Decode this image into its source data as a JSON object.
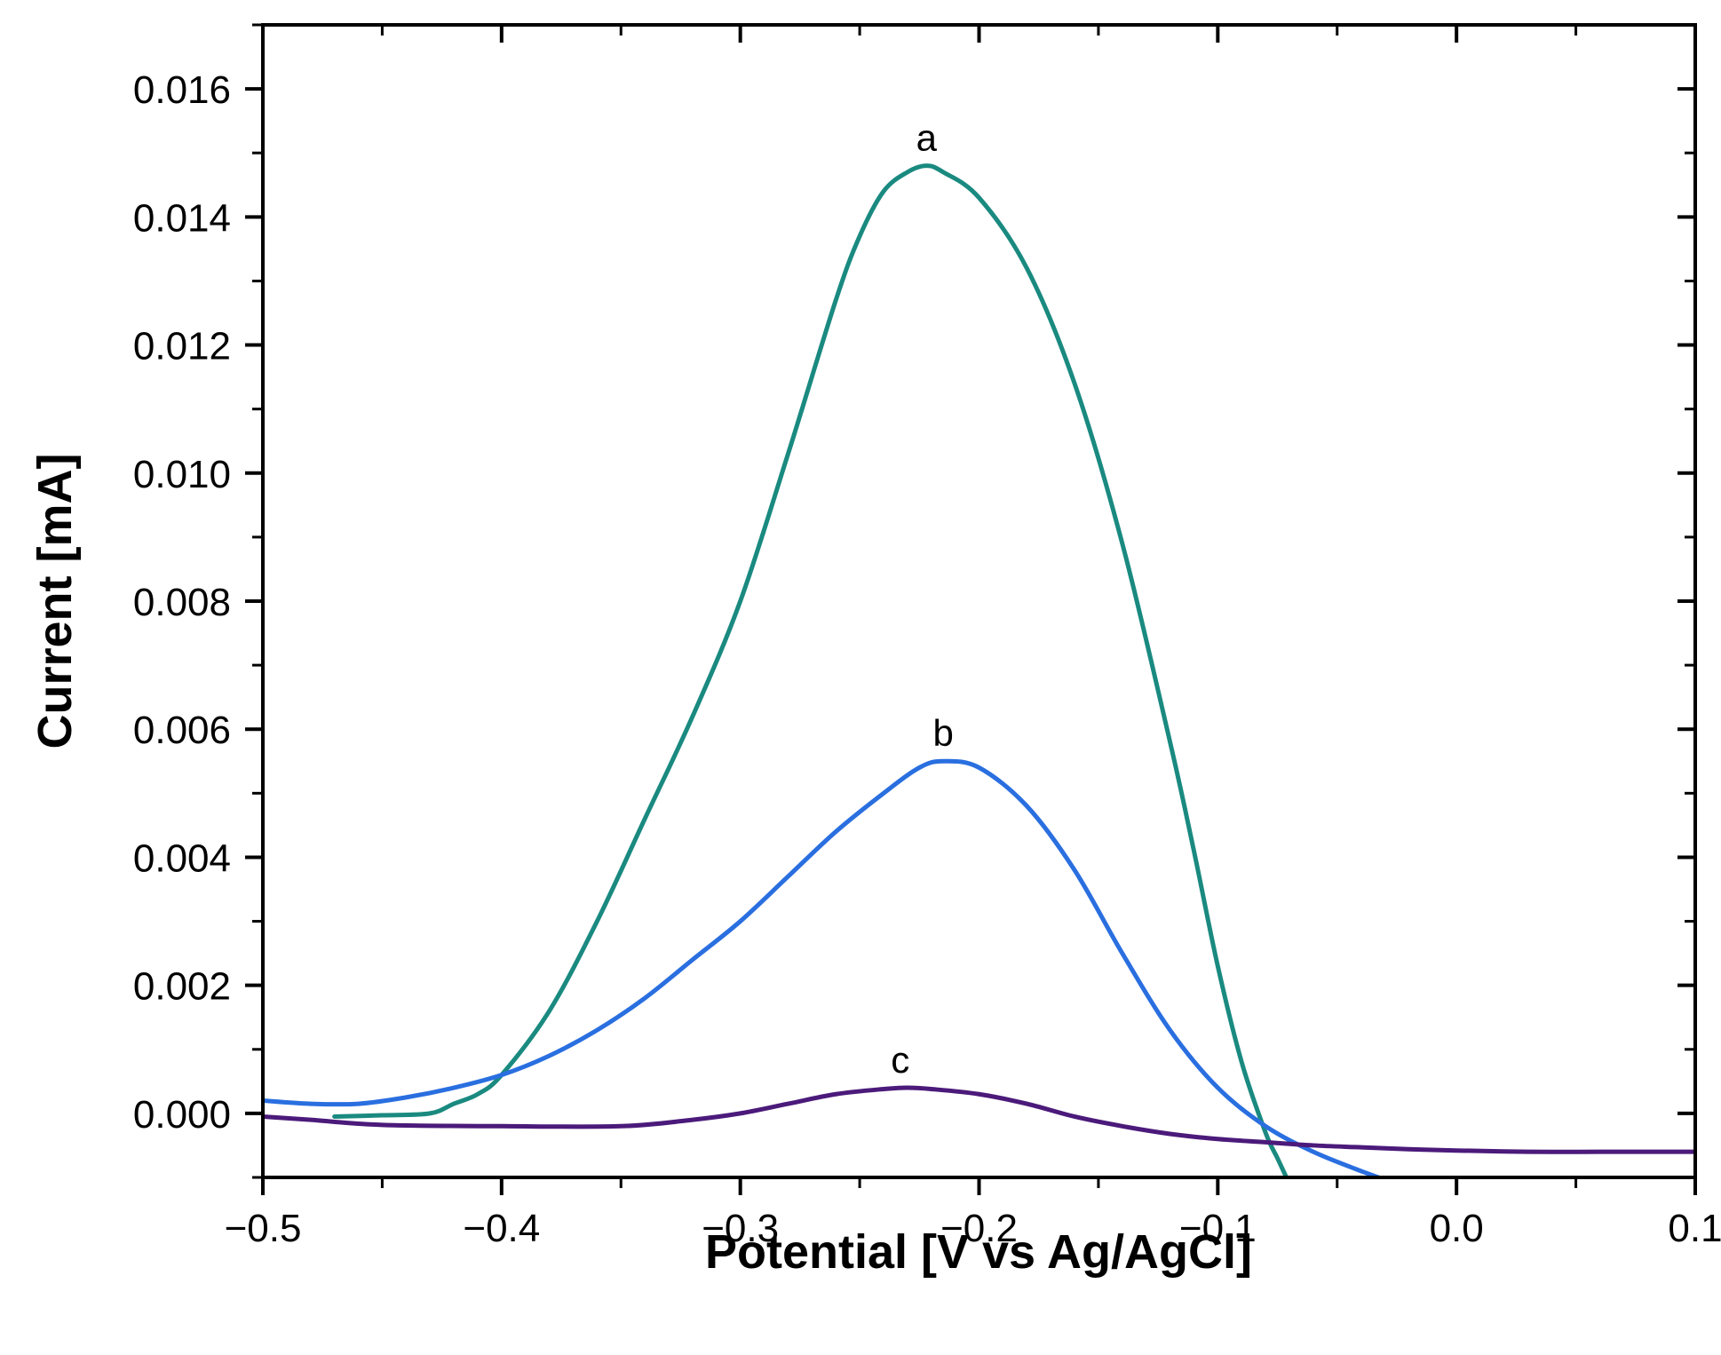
{
  "chart_data": {
    "type": "line",
    "title": "",
    "xlabel": "Potential [V vs Ag/AgCl]",
    "ylabel": "Current [mA]",
    "xlim": [
      -0.5,
      0.1
    ],
    "ylim": [
      -0.001,
      0.017
    ],
    "grid": false,
    "x_ticks": [
      -0.5,
      -0.4,
      -0.3,
      -0.2,
      -0.1,
      0.0,
      0.1
    ],
    "x_tick_labels": [
      "−0.5",
      "−0.4",
      "−0.3",
      "−0.2",
      "−0.1",
      "0.0",
      "0.1"
    ],
    "y_ticks": [
      0.0,
      0.002,
      0.004,
      0.006,
      0.008,
      0.01,
      0.012,
      0.014,
      0.016
    ],
    "y_tick_labels": [
      "0.000",
      "0.002",
      "0.004",
      "0.006",
      "0.008",
      "0.010",
      "0.012",
      "0.014",
      "0.016"
    ],
    "series": [
      {
        "name": "a",
        "label": "a",
        "color": "#1a8a80",
        "x": [
          -0.47,
          -0.45,
          -0.43,
          -0.42,
          -0.41,
          -0.4,
          -0.38,
          -0.36,
          -0.34,
          -0.32,
          -0.3,
          -0.28,
          -0.26,
          -0.25,
          -0.24,
          -0.23,
          -0.222,
          -0.215,
          -0.2,
          -0.18,
          -0.16,
          -0.14,
          -0.12,
          -0.11,
          -0.1,
          -0.09,
          -0.08,
          -0.075,
          -0.07
        ],
        "y": [
          -5e-05,
          -3e-05,
          0.0,
          0.00015,
          0.0003,
          0.0006,
          0.0016,
          0.003,
          0.0046,
          0.0062,
          0.008,
          0.0103,
          0.0127,
          0.0137,
          0.0144,
          0.0147,
          0.0148,
          0.0147,
          0.0143,
          0.0132,
          0.0114,
          0.0089,
          0.0058,
          0.0041,
          0.0023,
          0.0008,
          -0.0003,
          -0.0007,
          -0.0011
        ]
      },
      {
        "name": "b",
        "label": "b",
        "color": "#2a6fe0",
        "x": [
          -0.5,
          -0.48,
          -0.46,
          -0.44,
          -0.42,
          -0.4,
          -0.38,
          -0.36,
          -0.34,
          -0.32,
          -0.3,
          -0.28,
          -0.26,
          -0.24,
          -0.225,
          -0.215,
          -0.2,
          -0.18,
          -0.16,
          -0.14,
          -0.12,
          -0.1,
          -0.08,
          -0.06,
          -0.04,
          -0.025
        ],
        "y": [
          0.0002,
          0.00015,
          0.00015,
          0.00025,
          0.0004,
          0.0006,
          0.0009,
          0.0013,
          0.0018,
          0.0024,
          0.003,
          0.0037,
          0.0044,
          0.005,
          0.0054,
          0.0055,
          0.0054,
          0.0048,
          0.0038,
          0.0025,
          0.0013,
          0.0004,
          -0.0002,
          -0.0006,
          -0.0009,
          -0.0011
        ]
      },
      {
        "name": "c",
        "label": "c",
        "color": "#4b1a7a",
        "x": [
          -0.5,
          -0.48,
          -0.45,
          -0.4,
          -0.35,
          -0.32,
          -0.3,
          -0.28,
          -0.26,
          -0.24,
          -0.23,
          -0.22,
          -0.2,
          -0.18,
          -0.16,
          -0.14,
          -0.12,
          -0.1,
          -0.08,
          -0.06,
          -0.04,
          -0.02,
          0.0,
          0.03,
          0.06,
          0.1
        ],
        "y": [
          -5e-05,
          -0.0001,
          -0.00018,
          -0.0002,
          -0.0002,
          -0.0001,
          0.0,
          0.00015,
          0.0003,
          0.00038,
          0.0004,
          0.00038,
          0.0003,
          0.00015,
          -5e-05,
          -0.0002,
          -0.00032,
          -0.0004,
          -0.00045,
          -0.0005,
          -0.00053,
          -0.00056,
          -0.00058,
          -0.0006,
          -0.0006,
          -0.0006
        ]
      }
    ],
    "annotations": [
      {
        "text": "a",
        "x": -0.222,
        "y": 0.0149
      },
      {
        "text": "b",
        "x": -0.215,
        "y": 0.0056
      },
      {
        "text": "c",
        "x": -0.233,
        "y": 0.0005
      }
    ]
  }
}
